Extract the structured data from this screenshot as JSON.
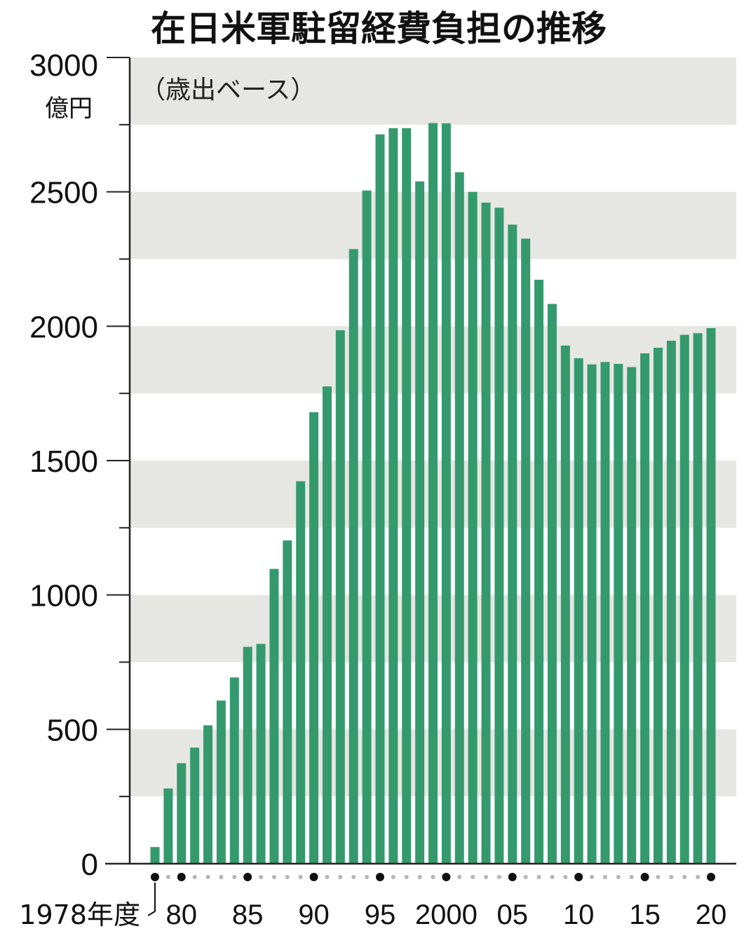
{
  "chart_data": {
    "type": "bar",
    "title": "在日米軍駐留経費負担の推移",
    "subtitle": "（歳出ベース）",
    "y_unit_label": "億円",
    "first_year_label": "1978年度",
    "ylim": [
      0,
      3000
    ],
    "y_ticks": [
      "0",
      "500",
      "1000",
      "1500",
      "2000",
      "2500",
      "3000"
    ],
    "x_tick_labels": [
      {
        "year": 1980,
        "label": "80"
      },
      {
        "year": 1985,
        "label": "85"
      },
      {
        "year": 1990,
        "label": "90"
      },
      {
        "year": 1995,
        "label": "95"
      },
      {
        "year": 2000,
        "label": "2000"
      },
      {
        "year": 2005,
        "label": "05"
      },
      {
        "year": 2010,
        "label": "10"
      },
      {
        "year": 2015,
        "label": "15"
      },
      {
        "year": 2020,
        "label": "20"
      }
    ],
    "categories": [
      1978,
      1979,
      1980,
      1981,
      1982,
      1983,
      1984,
      1985,
      1986,
      1987,
      1988,
      1989,
      1990,
      1991,
      1992,
      1993,
      1994,
      1995,
      1996,
      1997,
      1998,
      1999,
      2000,
      2001,
      2002,
      2003,
      2004,
      2005,
      2006,
      2007,
      2008,
      2009,
      2010,
      2011,
      2012,
      2013,
      2014,
      2015,
      2016,
      2017,
      2018,
      2019,
      2020
    ],
    "values": [
      62,
      280,
      374,
      432,
      515,
      607,
      693,
      807,
      818,
      1097,
      1203,
      1423,
      1680,
      1776,
      1985,
      2287,
      2505,
      2714,
      2737,
      2737,
      2539,
      2756,
      2755,
      2573,
      2500,
      2460,
      2441,
      2378,
      2326,
      2173,
      2083,
      1928,
      1881,
      1858,
      1867,
      1860,
      1848,
      1899,
      1920,
      1946,
      1968,
      1974,
      1993
    ],
    "grid": "alternating horizontal bands",
    "bar_color": "#349a6e",
    "band_color": "#e6e6e2"
  }
}
